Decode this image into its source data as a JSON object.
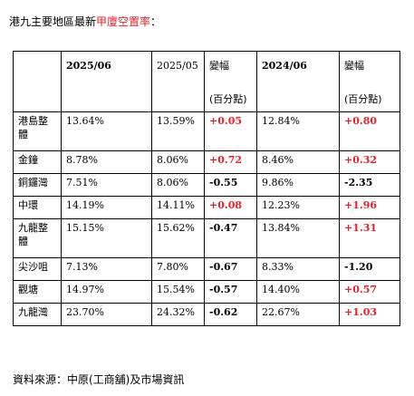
{
  "title": {
    "prefix": "港九主要地區最新",
    "highlight": "甲廈空置率",
    "suffix": "："
  },
  "colors": {
    "increase": "#e8202a",
    "decrease": "#000000"
  },
  "table": {
    "headers": {
      "col_2025_06": "2025/06",
      "col_2025_05": "2025/05",
      "change1_label": "變幅",
      "change1_unit": "(百分點)",
      "col_2024_06": "2024/06",
      "change2_label": "變幅",
      "change2_unit": "(百分點)"
    },
    "rows": [
      {
        "district": "港島整體",
        "v2025_06": "13.64%",
        "v2025_05": "13.59%",
        "chg_mom": "+0.05",
        "v2024_06": "12.84%",
        "chg_yoy": "+0.80"
      },
      {
        "district": "金鐘",
        "v2025_06": "8.78%",
        "v2025_05": "8.06%",
        "chg_mom": "+0.72",
        "v2024_06": "8.46%",
        "chg_yoy": "+0.32"
      },
      {
        "district": "銅鑼灣",
        "v2025_06": "7.51%",
        "v2025_05": "8.06%",
        "chg_mom": "-0.55",
        "v2024_06": "9.86%",
        "chg_yoy": "-2.35"
      },
      {
        "district": "中環",
        "v2025_06": "14.19%",
        "v2025_05": "14.11%",
        "chg_mom": "+0.08",
        "v2024_06": "12.23%",
        "chg_yoy": "+1.96"
      },
      {
        "district": "九龍整體",
        "v2025_06": "15.15%",
        "v2025_05": "15.62%",
        "chg_mom": "-0.47",
        "v2024_06": "13.84%",
        "chg_yoy": "+1.31"
      },
      {
        "district": "尖沙咀",
        "v2025_06": "7.13%",
        "v2025_05": "7.80%",
        "chg_mom": "-0.67",
        "v2024_06": "8.33%",
        "chg_yoy": "-1.20"
      },
      {
        "district": "觀塘",
        "v2025_06": "14.97%",
        "v2025_05": "15.54%",
        "chg_mom": "-0.57",
        "v2024_06": "14.40%",
        "chg_yoy": "+0.57"
      },
      {
        "district": "九龍灣",
        "v2025_06": "23.70%",
        "v2025_05": "24.32%",
        "chg_mom": "-0.62",
        "v2024_06": "22.67%",
        "chg_yoy": "+1.03"
      }
    ]
  },
  "source": "資料來源：中原(工商舖)及市場資訊"
}
